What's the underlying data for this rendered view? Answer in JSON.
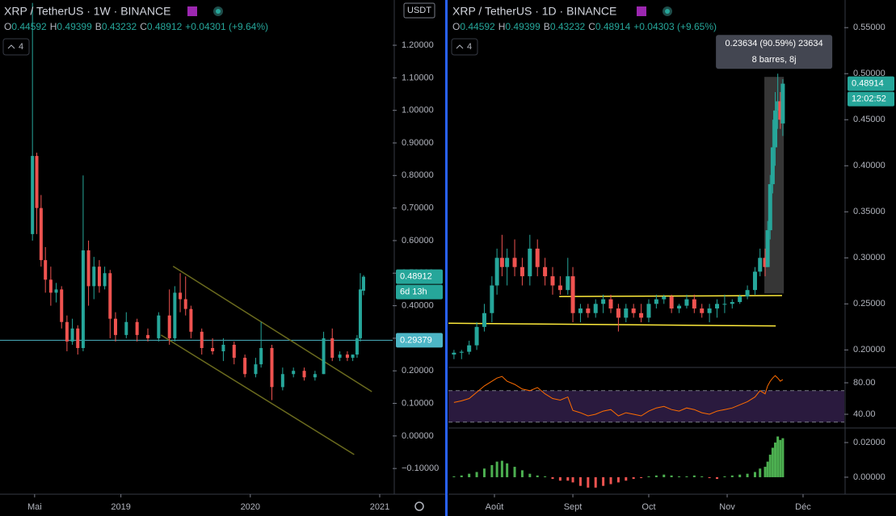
{
  "chart_data": [
    {
      "type": "candlestick",
      "title": "XRP / TetherUS · 1W · BINANCE",
      "ohlc": {
        "labels": [
          "O",
          "H",
          "B",
          "C"
        ],
        "values": [
          0.44592,
          0.49399,
          0.43232,
          0.48912
        ]
      },
      "change": "+0.04301 (+9.64%)",
      "indicators_label": 4,
      "currency": "USDT",
      "up_color": "#26a69a",
      "down_color": "#ef5350",
      "xlim": [
        0.79,
        37.2
      ],
      "ylim": [
        -0.174,
        1.339
      ],
      "xticks": [
        {
          "value": 4,
          "label": "Mai"
        },
        {
          "value": 12,
          "label": "2019"
        },
        {
          "value": 24,
          "label": "2020"
        },
        {
          "value": 36,
          "label": "2021"
        }
      ],
      "yticks": [
        {
          "value": -0.1,
          "label": "−0.10000"
        },
        {
          "value": 0,
          "label": "0.00000"
        },
        {
          "value": 0.1,
          "label": "0.10000"
        },
        {
          "value": 0.2,
          "label": "0.20000"
        },
        {
          "value": 0.3,
          "label": "0.30000"
        },
        {
          "value": 0.4,
          "label": "0.40000"
        },
        {
          "value": 0.5,
          "label": "0.50000"
        },
        {
          "value": 0.6,
          "label": "0.60000"
        },
        {
          "value": 0.7,
          "label": "0.70000"
        },
        {
          "value": 0.8,
          "label": "0.80000"
        },
        {
          "value": 0.9,
          "label": "0.90000"
        },
        {
          "value": 1.0,
          "label": "1.00000"
        },
        {
          "value": 1.1,
          "label": "1.10000"
        },
        {
          "value": 1.2,
          "label": "1.20000"
        }
      ],
      "x": [
        3.8,
        4.2,
        4.6,
        5.0,
        5.5,
        6.0,
        6.5,
        7.0,
        7.5,
        8.0,
        8.5,
        9.0,
        9.5,
        10,
        10.5,
        11,
        11.5,
        12.5,
        13.5,
        14.5,
        15.5,
        16.5,
        17,
        17.5,
        18,
        18.5,
        19.5,
        20.5,
        21.5,
        22.5,
        23.5,
        24.5,
        25.0,
        26.0,
        27,
        28,
        29,
        30,
        30.8,
        31.6,
        32.3,
        33.0,
        33.5,
        33.9,
        34.2,
        34.5
      ],
      "open": [
        0.62,
        0.86,
        0.7,
        0.54,
        0.48,
        0.44,
        0.45,
        0.35,
        0.29,
        0.33,
        0.27,
        0.57,
        0.46,
        0.52,
        0.46,
        0.5,
        0.36,
        0.31,
        0.35,
        0.31,
        0.3,
        0.37,
        0.3,
        0.44,
        0.42,
        0.39,
        0.32,
        0.27,
        0.26,
        0.28,
        0.24,
        0.19,
        0.22,
        0.27,
        0.15,
        0.19,
        0.2,
        0.18,
        0.19,
        0.3,
        0.24,
        0.25,
        0.24,
        0.25,
        0.3,
        0.44592
      ],
      "high": [
        1.33,
        0.87,
        0.74,
        0.58,
        0.52,
        0.47,
        0.46,
        0.37,
        0.36,
        0.34,
        0.8,
        0.6,
        0.55,
        0.54,
        0.52,
        0.51,
        0.38,
        0.38,
        0.36,
        0.33,
        0.38,
        0.45,
        0.46,
        0.5,
        0.49,
        0.4,
        0.33,
        0.3,
        0.3,
        0.29,
        0.25,
        0.24,
        0.35,
        0.28,
        0.21,
        0.21,
        0.21,
        0.2,
        0.32,
        0.33,
        0.26,
        0.26,
        0.25,
        0.31,
        0.5,
        0.49399
      ],
      "low": [
        0.6,
        0.62,
        0.52,
        0.44,
        0.4,
        0.41,
        0.33,
        0.26,
        0.28,
        0.25,
        0.26,
        0.4,
        0.42,
        0.44,
        0.45,
        0.3,
        0.29,
        0.3,
        0.29,
        0.29,
        0.29,
        0.28,
        0.29,
        0.38,
        0.37,
        0.3,
        0.25,
        0.25,
        0.23,
        0.22,
        0.18,
        0.18,
        0.21,
        0.11,
        0.14,
        0.18,
        0.17,
        0.17,
        0.19,
        0.23,
        0.23,
        0.23,
        0.23,
        0.24,
        0.29,
        0.43232
      ],
      "close": [
        0.86,
        0.7,
        0.54,
        0.48,
        0.44,
        0.45,
        0.35,
        0.29,
        0.33,
        0.27,
        0.57,
        0.46,
        0.52,
        0.46,
        0.5,
        0.36,
        0.31,
        0.35,
        0.31,
        0.3,
        0.37,
        0.3,
        0.44,
        0.42,
        0.39,
        0.32,
        0.27,
        0.26,
        0.28,
        0.24,
        0.19,
        0.22,
        0.27,
        0.15,
        0.19,
        0.2,
        0.18,
        0.19,
        0.3,
        0.24,
        0.25,
        0.24,
        0.25,
        0.3,
        0.45,
        0.48912
      ],
      "trendline_color": "#6b6b1e",
      "trendlines": [
        {
          "x": [
            16.84,
            35.27
          ],
          "y": [
            0.521,
            0.136
          ]
        },
        {
          "x": [
            15.72,
            33.63
          ],
          "y": [
            0.31,
            -0.057
          ]
        }
      ],
      "price_line": {
        "value": 0.29379,
        "color": "#4db6c6"
      },
      "last_price": 0.48912,
      "countdown": "6d 13h"
    },
    {
      "type": "candlestick",
      "title": "XRP / TetherUS · 1D · BINANCE",
      "ohlc": {
        "labels": [
          "O",
          "H",
          "B",
          "C"
        ],
        "values": [
          0.44592,
          0.49399,
          0.43232,
          0.48914
        ]
      },
      "change": "+0.04303 (+9.65%)",
      "indicators_label": 4,
      "up_color": "#26a69a",
      "down_color": "#ef5350",
      "xlim": [
        -18.2,
        138.3
      ],
      "ylim": [
        0.181,
        0.58
      ],
      "xticks": [
        {
          "value": 0,
          "label": "Août"
        },
        {
          "value": 31,
          "label": "Sept"
        },
        {
          "value": 61,
          "label": "Oct"
        },
        {
          "value": 92,
          "label": "Nov"
        },
        {
          "value": 122,
          "label": "Déc"
        }
      ],
      "yticks": [
        {
          "value": 0.2,
          "label": "0.20000"
        },
        {
          "value": 0.25,
          "label": "0.25000"
        },
        {
          "value": 0.3,
          "label": "0.30000"
        },
        {
          "value": 0.35,
          "label": "0.35000"
        },
        {
          "value": 0.4,
          "label": "0.40000"
        },
        {
          "value": 0.45,
          "label": "0.45000"
        },
        {
          "value": 0.5,
          "label": "0.50000"
        },
        {
          "value": 0.55,
          "label": "0.55000"
        }
      ],
      "x": [
        -16,
        -13,
        -10,
        -7,
        -4,
        -1,
        1,
        3,
        5,
        8,
        11,
        14,
        17,
        20,
        23,
        26,
        29,
        31,
        34,
        37,
        40,
        43,
        46,
        49,
        52,
        55,
        58,
        61,
        64,
        67,
        70,
        73,
        76,
        79,
        82,
        85,
        88,
        91,
        94,
        97,
        100,
        103,
        105,
        107,
        108,
        109,
        110,
        111,
        112,
        113,
        114
      ],
      "open": [
        0.195,
        0.197,
        0.198,
        0.205,
        0.225,
        0.24,
        0.27,
        0.3,
        0.29,
        0.3,
        0.29,
        0.28,
        0.31,
        0.29,
        0.28,
        0.27,
        0.265,
        0.28,
        0.24,
        0.245,
        0.24,
        0.25,
        0.255,
        0.245,
        0.235,
        0.245,
        0.24,
        0.235,
        0.25,
        0.255,
        0.258,
        0.245,
        0.248,
        0.255,
        0.245,
        0.24,
        0.245,
        0.25,
        0.25,
        0.252,
        0.258,
        0.265,
        0.285,
        0.3,
        0.29,
        0.33,
        0.38,
        0.42,
        0.46,
        0.47,
        0.44592
      ],
      "high": [
        0.2,
        0.2,
        0.21,
        0.23,
        0.25,
        0.28,
        0.31,
        0.325,
        0.31,
        0.32,
        0.3,
        0.325,
        0.32,
        0.3,
        0.29,
        0.28,
        0.3,
        0.29,
        0.25,
        0.25,
        0.255,
        0.26,
        0.26,
        0.25,
        0.25,
        0.25,
        0.25,
        0.255,
        0.26,
        0.26,
        0.26,
        0.25,
        0.26,
        0.26,
        0.25,
        0.25,
        0.255,
        0.26,
        0.255,
        0.26,
        0.27,
        0.29,
        0.31,
        0.31,
        0.34,
        0.39,
        0.45,
        0.48,
        0.5,
        0.48,
        0.49399
      ],
      "low": [
        0.19,
        0.19,
        0.195,
        0.2,
        0.22,
        0.23,
        0.26,
        0.28,
        0.27,
        0.28,
        0.27,
        0.27,
        0.28,
        0.27,
        0.26,
        0.26,
        0.26,
        0.23,
        0.23,
        0.235,
        0.235,
        0.24,
        0.24,
        0.22,
        0.23,
        0.235,
        0.23,
        0.23,
        0.245,
        0.25,
        0.24,
        0.24,
        0.245,
        0.24,
        0.235,
        0.23,
        0.235,
        0.24,
        0.245,
        0.25,
        0.255,
        0.26,
        0.28,
        0.28,
        0.29,
        0.32,
        0.37,
        0.4,
        0.44,
        0.44,
        0.43232
      ],
      "close": [
        0.197,
        0.198,
        0.205,
        0.225,
        0.24,
        0.27,
        0.3,
        0.29,
        0.3,
        0.29,
        0.28,
        0.31,
        0.29,
        0.28,
        0.27,
        0.265,
        0.28,
        0.24,
        0.245,
        0.24,
        0.25,
        0.255,
        0.245,
        0.235,
        0.245,
        0.24,
        0.235,
        0.25,
        0.255,
        0.258,
        0.245,
        0.248,
        0.255,
        0.245,
        0.24,
        0.245,
        0.25,
        0.25,
        0.252,
        0.258,
        0.265,
        0.285,
        0.3,
        0.29,
        0.33,
        0.38,
        0.42,
        0.46,
        0.47,
        0.45,
        0.48914
      ],
      "trendline_color": "#ffeb3b",
      "trendlines": [
        {
          "x": [
            25.6,
            113.7
          ],
          "y": [
            0.258,
            0.259
          ]
        },
        {
          "x": [
            -18.2,
            111.2
          ],
          "y": [
            0.229,
            0.226
          ]
        }
      ],
      "measure": {
        "x": [
          106.7,
          114.4
        ],
        "y": [
          0.2614,
          0.4965
        ],
        "label": "0.23634 (90.59%) 23634",
        "sublabel": "8 barres, 8j"
      },
      "last_price": 0.48914,
      "countdown": "12:02:52"
    },
    {
      "type": "line",
      "color": "#ff6d00",
      "band_color": "#2a1a3e",
      "bands": [
        30,
        70
      ],
      "xlim": [
        -18.2,
        138.3
      ],
      "ylim": [
        22.6,
        99.5
      ],
      "yticks": [
        {
          "value": 80,
          "label": "80.00"
        },
        {
          "value": 40,
          "label": "40.00"
        }
      ],
      "x": [
        -16,
        -13,
        -10,
        -7,
        -4,
        -1,
        1,
        3,
        5,
        8,
        11,
        14,
        17,
        20,
        23,
        26,
        29,
        31,
        34,
        37,
        40,
        43,
        46,
        49,
        52,
        55,
        58,
        61,
        64,
        67,
        70,
        73,
        76,
        79,
        82,
        85,
        88,
        91,
        94,
        97,
        100,
        103,
        105,
        107,
        108,
        109,
        110,
        111,
        112,
        113,
        114
      ],
      "values": [
        55,
        57,
        60,
        68,
        76,
        82,
        86,
        88,
        82,
        78,
        72,
        70,
        74,
        66,
        60,
        58,
        62,
        45,
        42,
        38,
        40,
        44,
        46,
        38,
        42,
        40,
        38,
        44,
        48,
        50,
        46,
        44,
        48,
        46,
        42,
        40,
        44,
        46,
        48,
        52,
        56,
        62,
        70,
        66,
        76,
        82,
        86,
        89,
        86,
        82,
        84
      ]
    },
    {
      "type": "bar",
      "up_color": "#4caf50",
      "down_color": "#ef5350",
      "xlim": [
        -18.2,
        138.3
      ],
      "ylim": [
        -0.0098,
        0.0284
      ],
      "yticks": [
        {
          "value": 0.02,
          "label": "0.02000"
        },
        {
          "value": 0,
          "label": "0.00000"
        }
      ],
      "x": [
        -16,
        -13,
        -10,
        -7,
        -4,
        -1,
        1,
        3,
        5,
        8,
        11,
        14,
        17,
        20,
        23,
        26,
        29,
        31,
        34,
        37,
        40,
        43,
        46,
        49,
        52,
        55,
        58,
        61,
        64,
        67,
        70,
        73,
        76,
        79,
        82,
        85,
        88,
        91,
        94,
        97,
        100,
        103,
        105,
        107,
        108,
        109,
        110,
        111,
        112,
        113,
        114
      ],
      "values": [
        0.0005,
        0.001,
        0.002,
        0.003,
        0.005,
        0.007,
        0.009,
        0.0095,
        0.008,
        0.006,
        0.004,
        0.002,
        0.001,
        0.0005,
        -0.001,
        -0.002,
        -0.002,
        -0.003,
        -0.005,
        -0.006,
        -0.006,
        -0.005,
        -0.004,
        -0.003,
        -0.002,
        -0.001,
        -0.0005,
        0.0005,
        0.001,
        0.0015,
        0.001,
        0.0005,
        0.0005,
        0.001,
        0.0005,
        -0.0005,
        -0.001,
        0.0005,
        0.001,
        0.0015,
        0.002,
        0.003,
        0.005,
        0.006,
        0.009,
        0.013,
        0.017,
        0.02,
        0.0235,
        0.0215,
        0.0225
      ]
    }
  ]
}
